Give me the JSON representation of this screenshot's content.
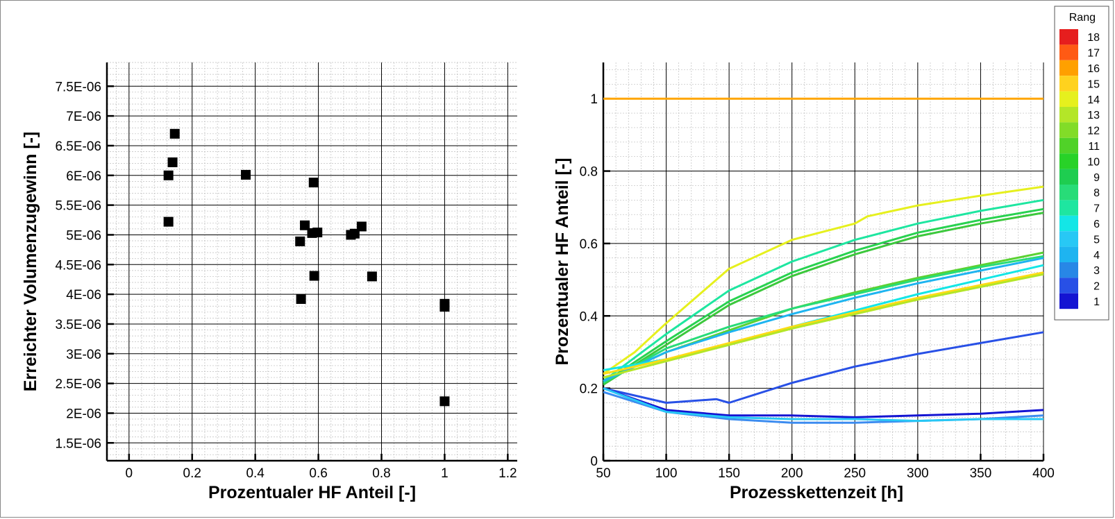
{
  "chart_data": [
    {
      "type": "scatter",
      "xlabel": "Prozentualer HF Anteil [-]",
      "ylabel": "Erreichter Volumenzugewinn [-]",
      "xlim": [
        -0.07,
        1.23
      ],
      "ylim": [
        1.2e-06,
        7.9e-06
      ],
      "x_ticks": [
        0,
        0.2,
        0.4,
        0.6,
        0.8,
        1,
        1.2
      ],
      "x_tick_labels": [
        "0",
        "0.2",
        "0.4",
        "0.6",
        "0.8",
        "1",
        "1.2"
      ],
      "y_ticks": [
        1.5e-06,
        2e-06,
        2.5e-06,
        3e-06,
        3.5e-06,
        4e-06,
        4.5e-06,
        5e-06,
        5.5e-06,
        6e-06,
        6.5e-06,
        7e-06,
        7.5e-06
      ],
      "y_tick_labels": [
        "1.5E-06",
        "2E-06",
        "2.5E-06",
        "3E-06",
        "3.5E-06",
        "4E-06",
        "4.5E-06",
        "5E-06",
        "5.5E-06",
        "6E-06",
        "6.5E-06",
        "7E-06",
        "7.5E-06"
      ],
      "grid": true,
      "marker": "square",
      "marker_color": "#000000",
      "points": [
        {
          "x": 0.145,
          "y": 6.7e-06
        },
        {
          "x": 0.138,
          "y": 6.22e-06
        },
        {
          "x": 0.125,
          "y": 6e-06
        },
        {
          "x": 0.125,
          "y": 5.22e-06
        },
        {
          "x": 0.37,
          "y": 6.01e-06
        },
        {
          "x": 0.585,
          "y": 5.88e-06
        },
        {
          "x": 0.557,
          "y": 5.16e-06
        },
        {
          "x": 0.58,
          "y": 5.03e-06
        },
        {
          "x": 0.597,
          "y": 5.04e-06
        },
        {
          "x": 0.542,
          "y": 4.89e-06
        },
        {
          "x": 0.587,
          "y": 4.31e-06
        },
        {
          "x": 0.545,
          "y": 3.92e-06
        },
        {
          "x": 0.703,
          "y": 5e-06
        },
        {
          "x": 0.715,
          "y": 5.02e-06
        },
        {
          "x": 0.737,
          "y": 5.14e-06
        },
        {
          "x": 0.77,
          "y": 4.3e-06
        },
        {
          "x": 1.0,
          "y": 3.84e-06
        },
        {
          "x": 1.0,
          "y": 3.79e-06
        },
        {
          "x": 1.0,
          "y": 2.2e-06
        }
      ]
    },
    {
      "type": "line",
      "xlabel": "Prozesskettenzeit [h]",
      "ylabel": "Prozentualer HF Anteil [-]",
      "xlim": [
        50,
        400
      ],
      "ylim": [
        0,
        1.1
      ],
      "x_ticks": [
        50,
        100,
        150,
        200,
        250,
        300,
        350,
        400
      ],
      "x_tick_labels": [
        "50",
        "100",
        "150",
        "200",
        "250",
        "300",
        "350",
        "400"
      ],
      "y_ticks": [
        0,
        0.2,
        0.4,
        0.6,
        0.8,
        1
      ],
      "y_tick_labels": [
        "0",
        "0.2",
        "0.4",
        "0.6",
        "0.8",
        "1"
      ],
      "grid": true,
      "series": [
        {
          "rank": 16,
          "color": "#ffa500",
          "x": [
            50,
            400
          ],
          "y": [
            1.0,
            1.0
          ]
        },
        {
          "rank": 14,
          "color": "#e6f01e",
          "x": [
            50,
            75,
            100,
            150,
            200,
            250,
            260,
            300,
            350,
            400
          ],
          "y": [
            0.24,
            0.3,
            0.38,
            0.53,
            0.61,
            0.655,
            0.675,
            0.705,
            0.732,
            0.757
          ]
        },
        {
          "rank": 7,
          "color": "#1ee6a0",
          "x": [
            50,
            100,
            150,
            200,
            250,
            300,
            350,
            400
          ],
          "y": [
            0.22,
            0.35,
            0.47,
            0.55,
            0.61,
            0.655,
            0.69,
            0.72
          ]
        },
        {
          "rank": 9,
          "color": "#28d250",
          "x": [
            50,
            100,
            150,
            200,
            250,
            300,
            350,
            400
          ],
          "y": [
            0.215,
            0.33,
            0.44,
            0.52,
            0.58,
            0.63,
            0.665,
            0.695
          ]
        },
        {
          "rank": 10,
          "color": "#3cc83c",
          "x": [
            50,
            100,
            150,
            200,
            250,
            300,
            350,
            400
          ],
          "y": [
            0.21,
            0.32,
            0.43,
            0.51,
            0.57,
            0.62,
            0.655,
            0.685
          ]
        },
        {
          "rank": 11,
          "color": "#5ad232",
          "x": [
            50,
            100,
            150,
            200,
            250,
            300,
            350,
            400
          ],
          "y": [
            0.22,
            0.3,
            0.36,
            0.42,
            0.465,
            0.505,
            0.54,
            0.575
          ]
        },
        {
          "rank": 8,
          "color": "#28dc78",
          "x": [
            50,
            100,
            150,
            200,
            250,
            300,
            350,
            400
          ],
          "y": [
            0.215,
            0.31,
            0.37,
            0.42,
            0.46,
            0.5,
            0.535,
            0.565
          ]
        },
        {
          "rank": 4,
          "color": "#1eb4f0",
          "x": [
            50,
            100,
            150,
            200,
            250,
            300,
            350,
            400
          ],
          "y": [
            0.22,
            0.3,
            0.355,
            0.405,
            0.45,
            0.49,
            0.525,
            0.56
          ]
        },
        {
          "rank": 6,
          "color": "#14e6e6",
          "x": [
            50,
            100,
            150,
            200,
            250,
            300,
            350,
            400
          ],
          "y": [
            0.25,
            0.28,
            0.32,
            0.37,
            0.415,
            0.46,
            0.5,
            0.54
          ]
        },
        {
          "rank": 15,
          "color": "#ffdc14",
          "x": [
            50,
            100,
            150,
            200,
            250,
            300,
            350,
            400
          ],
          "y": [
            0.24,
            0.28,
            0.325,
            0.37,
            0.41,
            0.45,
            0.485,
            0.52
          ]
        },
        {
          "rank": 13,
          "color": "#b4e628",
          "x": [
            50,
            100,
            150,
            200,
            250,
            300,
            350,
            400
          ],
          "y": [
            0.23,
            0.275,
            0.32,
            0.365,
            0.405,
            0.445,
            0.48,
            0.515
          ]
        },
        {
          "rank": 2,
          "color": "#2850e6",
          "x": [
            50,
            100,
            140,
            150,
            200,
            250,
            300,
            350,
            400
          ],
          "y": [
            0.2,
            0.16,
            0.17,
            0.16,
            0.215,
            0.26,
            0.295,
            0.325,
            0.355
          ]
        },
        {
          "rank": 1,
          "color": "#1414d2",
          "x": [
            50,
            100,
            150,
            200,
            250,
            300,
            350,
            400
          ],
          "y": [
            0.2,
            0.14,
            0.125,
            0.125,
            0.12,
            0.125,
            0.13,
            0.14
          ]
        },
        {
          "rank": 3,
          "color": "#3c8cf0",
          "x": [
            50,
            100,
            150,
            200,
            250,
            300,
            350,
            400
          ],
          "y": [
            0.19,
            0.135,
            0.115,
            0.105,
            0.105,
            0.11,
            0.115,
            0.125
          ]
        },
        {
          "rank": 5,
          "color": "#28c8f5",
          "x": [
            50,
            100,
            150,
            200,
            250,
            300,
            350,
            400
          ],
          "y": [
            0.2,
            0.135,
            0.12,
            0.115,
            0.115,
            0.11,
            0.115,
            0.115
          ]
        }
      ]
    }
  ],
  "legend": {
    "title": "Rang",
    "placement": "top-right",
    "levels": [
      "18",
      "17",
      "16",
      "15",
      "14",
      "13",
      "12",
      "11",
      "10",
      "9",
      "8",
      "7",
      "6",
      "5",
      "4",
      "3",
      "2",
      "1"
    ],
    "colors": [
      "#e61e1e",
      "#ff5a14",
      "#ffa000",
      "#ffd21e",
      "#e6f01e",
      "#b4e628",
      "#82dc28",
      "#50d228",
      "#28d228",
      "#1ecd50",
      "#28dc78",
      "#1ee6a0",
      "#14e6e6",
      "#28c8f5",
      "#1eb4f0",
      "#2887e6",
      "#2850e6",
      "#1414d2"
    ]
  }
}
